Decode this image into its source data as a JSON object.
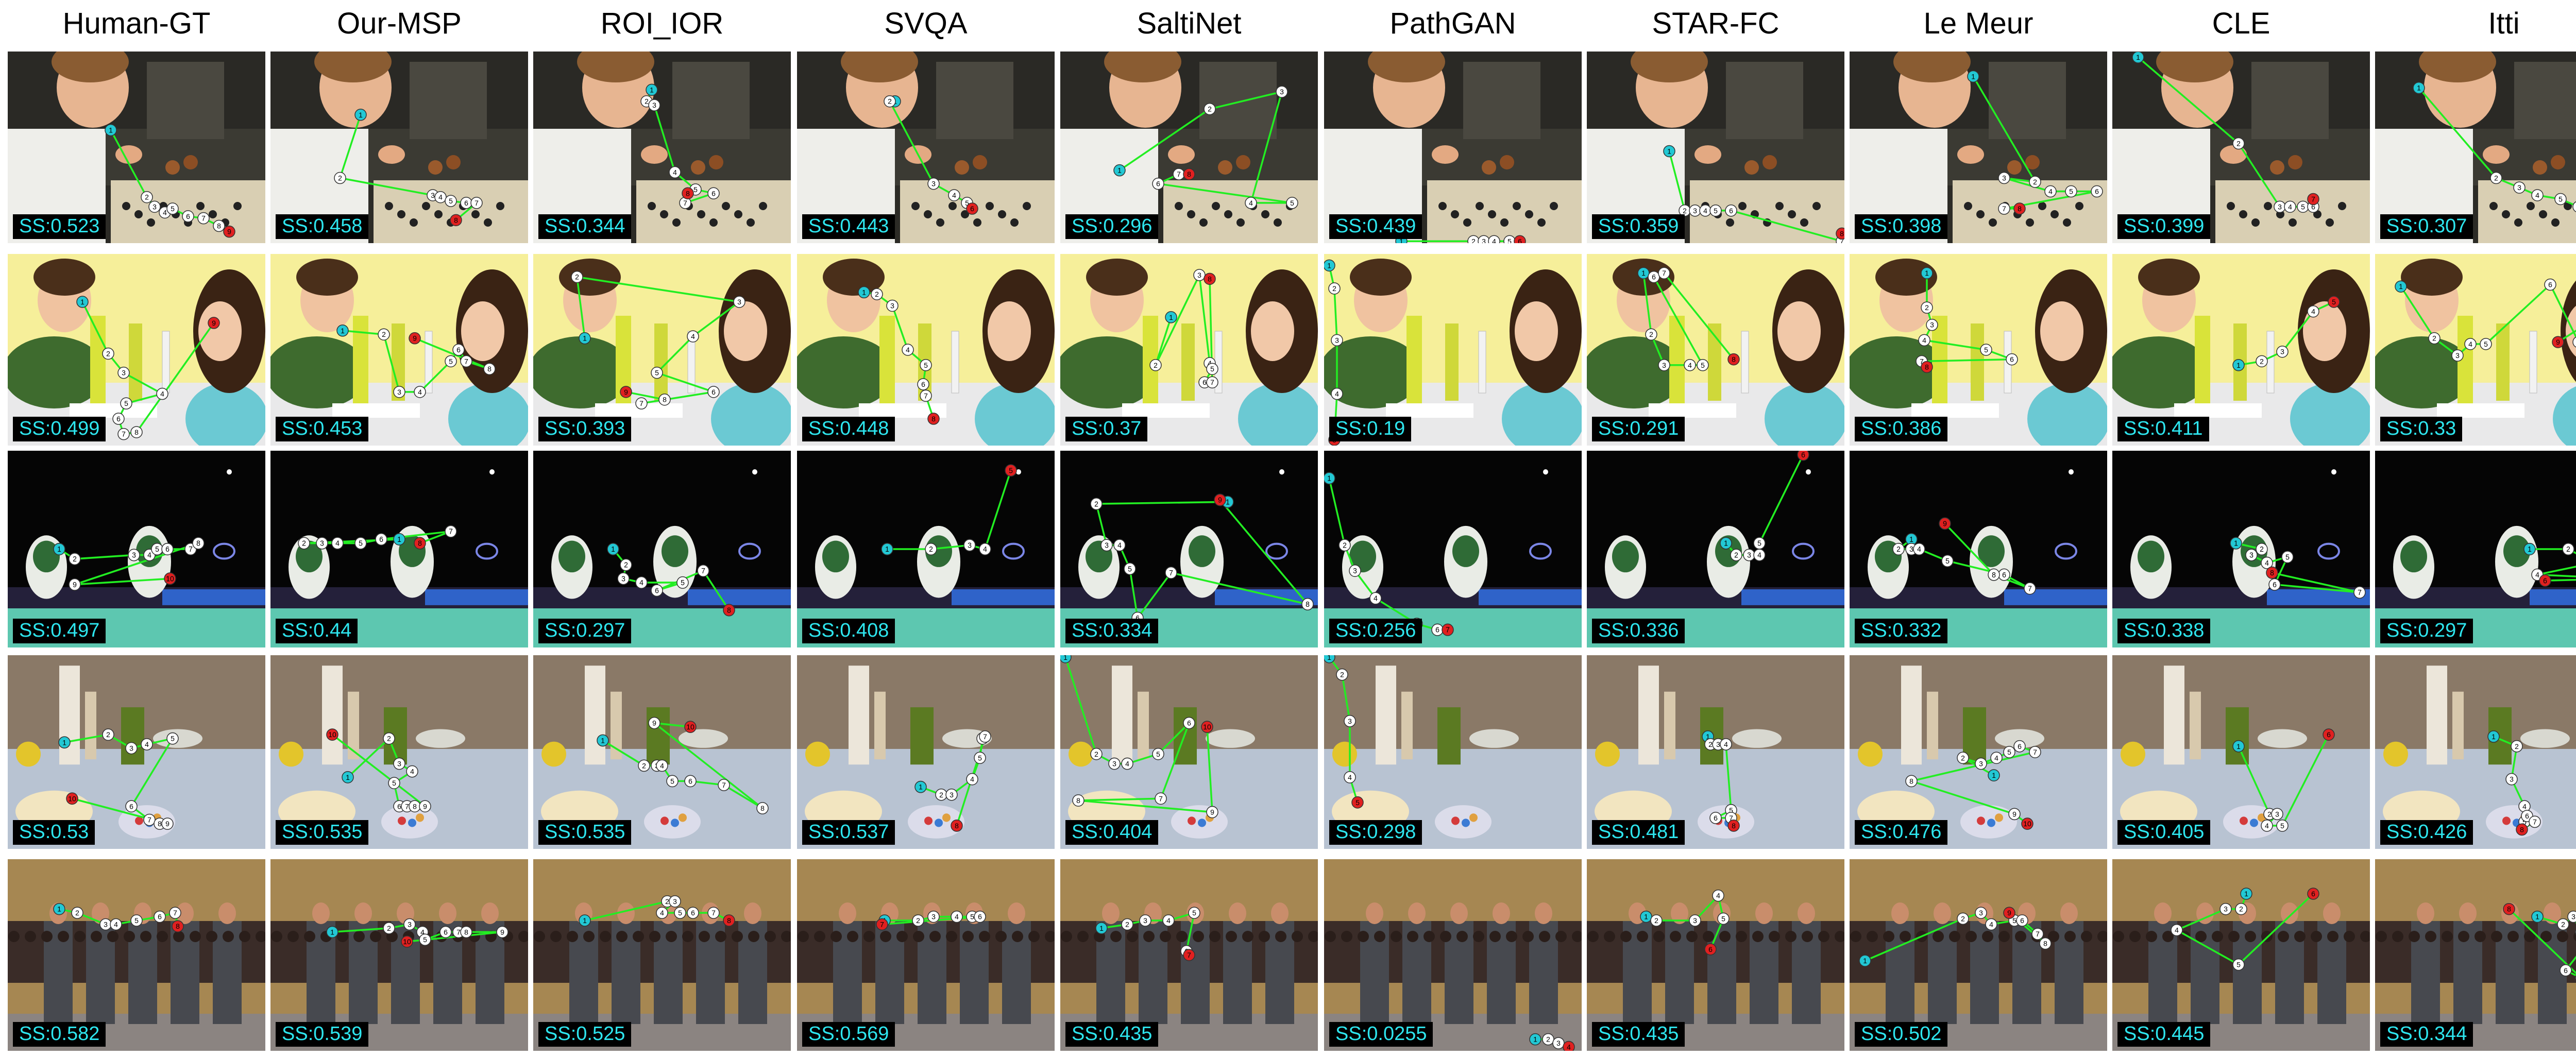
{
  "columns": [
    "Human-GT",
    "Our-MSP",
    "ROI_IOR",
    "SVQA",
    "SaltiNet",
    "PathGAN",
    "STAR-FC",
    "Le Meur",
    "CLE",
    "Itti"
  ],
  "rows": [
    {
      "scene": "boy-board-game",
      "scores": [
        "SS:0.523",
        "SS:0.458",
        "SS:0.344",
        "SS:0.443",
        "SS:0.296",
        "SS:0.439",
        "SS:0.359",
        "SS:0.398",
        "SS:0.399",
        "SS:0.307"
      ]
    },
    {
      "scene": "children-table-yellow-wall",
      "scores": [
        "SS:0.499",
        "SS:0.453",
        "SS:0.393",
        "SS:0.448",
        "SS:0.37",
        "SS:0.19",
        "SS:0.291",
        "SS:0.386",
        "SS:0.411",
        "SS:0.33"
      ]
    },
    {
      "scene": "badminton-players",
      "scores": [
        "SS:0.497",
        "SS:0.44",
        "SS:0.297",
        "SS:0.408",
        "SS:0.334",
        "SS:0.256",
        "SS:0.336",
        "SS:0.332",
        "SS:0.338",
        "SS:0.297"
      ]
    },
    {
      "scene": "kitchen-table-objects",
      "scores": [
        "SS:0.53",
        "SS:0.535",
        "SS:0.535",
        "SS:0.537",
        "SS:0.404",
        "SS:0.298",
        "SS:0.481",
        "SS:0.476",
        "SS:0.405",
        "SS:0.426"
      ]
    },
    {
      "scene": "men-in-suits-audience",
      "scores": [
        "SS:0.582",
        "SS:0.539",
        "SS:0.525",
        "SS:0.569",
        "SS:0.435",
        "SS:0.0255",
        "SS:0.435",
        "SS:0.502",
        "SS:0.445",
        "SS:0.344"
      ]
    }
  ],
  "colors": {
    "scanpath_line": "#22ee22",
    "first_fixation": "#22c8d4",
    "last_fixation": "#e02020",
    "fixation": "#ffffff",
    "score_text": "#2ee6ef",
    "score_bg": "#000000"
  }
}
